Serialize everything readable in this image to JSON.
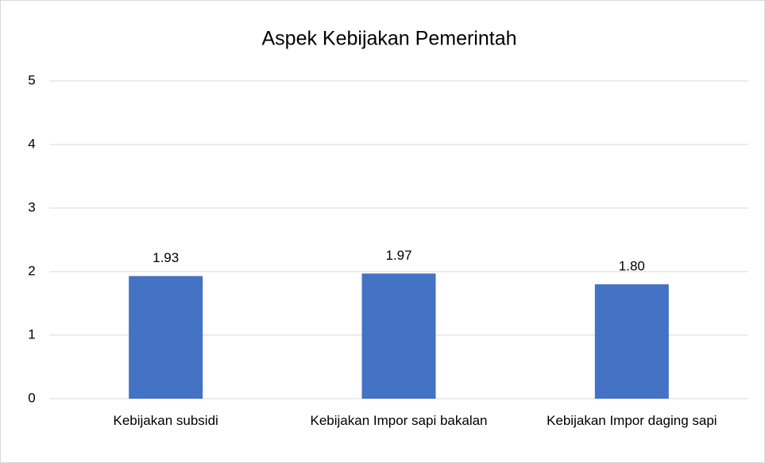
{
  "chart_data": {
    "type": "bar",
    "title": "Aspek Kebijakan Pemerintah",
    "categories": [
      "Kebijakan subsidi",
      "Kebijakan Impor sapi bakalan",
      "Kebijakan Impor daging sapi"
    ],
    "values": [
      1.93,
      1.97,
      1.8
    ],
    "value_labels": [
      "1.93",
      "1.97",
      "1.80"
    ],
    "color": "#4472c4",
    "ylim": [
      0,
      5
    ],
    "yticks": [
      0,
      1,
      2,
      3,
      4,
      5
    ],
    "grid": true
  }
}
